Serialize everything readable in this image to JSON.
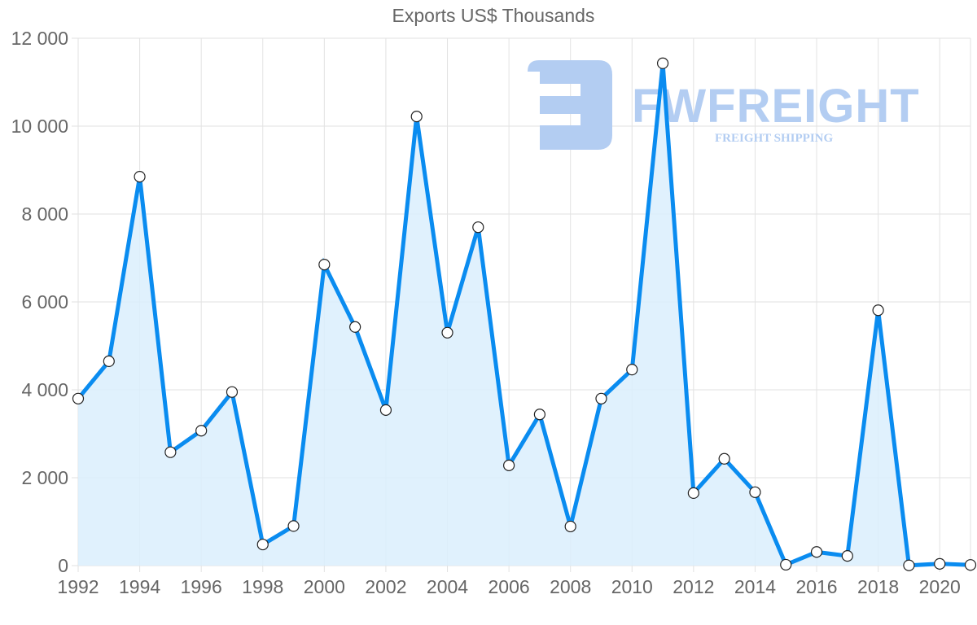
{
  "chart_data": {
    "type": "line",
    "title": "Exports US$ Thousands",
    "xlabel": "",
    "ylabel": "",
    "x": [
      1992,
      1993,
      1994,
      1995,
      1996,
      1997,
      1998,
      1999,
      2000,
      2001,
      2002,
      2003,
      2004,
      2005,
      2006,
      2007,
      2008,
      2009,
      2010,
      2011,
      2012,
      2013,
      2014,
      2015,
      2016,
      2017,
      2018,
      2019,
      2020,
      2021
    ],
    "series": [
      {
        "name": "Exports US$ Thousands",
        "values": [
          3800,
          4650,
          8850,
          2580,
          3070,
          3950,
          480,
          900,
          6850,
          5430,
          3540,
          10220,
          5300,
          7700,
          2280,
          3440,
          890,
          3800,
          4460,
          11430,
          1650,
          2430,
          1670,
          20,
          310,
          220,
          5810,
          5,
          40,
          15
        ]
      }
    ],
    "ylim": [
      0,
      12000
    ],
    "xlim": [
      1992,
      2021
    ],
    "y_ticks": [
      0,
      2000,
      4000,
      6000,
      8000,
      10000,
      12000
    ],
    "y_tick_labels": [
      "0",
      "2 000",
      "4 000",
      "6 000",
      "8 000",
      "10 000",
      "12 000"
    ],
    "x_tick_labels": [
      "1992",
      "1994",
      "1996",
      "1998",
      "2000",
      "2002",
      "2004",
      "2006",
      "2008",
      "2010",
      "2012",
      "2014",
      "2016",
      "2018",
      "2020"
    ],
    "grid": true,
    "legend": "none",
    "fill": true,
    "colors": {
      "line": "#0a8cf0",
      "fill": "#dbeefd",
      "point_fill": "#ffffff",
      "point_stroke": "#222222",
      "grid": "#e2e2e2",
      "axis_text": "#666666"
    }
  },
  "watermark": {
    "brand": "FWFREIGHT",
    "tagline": "FREIGHT SHIPPING",
    "color": "#b3cdf2"
  }
}
